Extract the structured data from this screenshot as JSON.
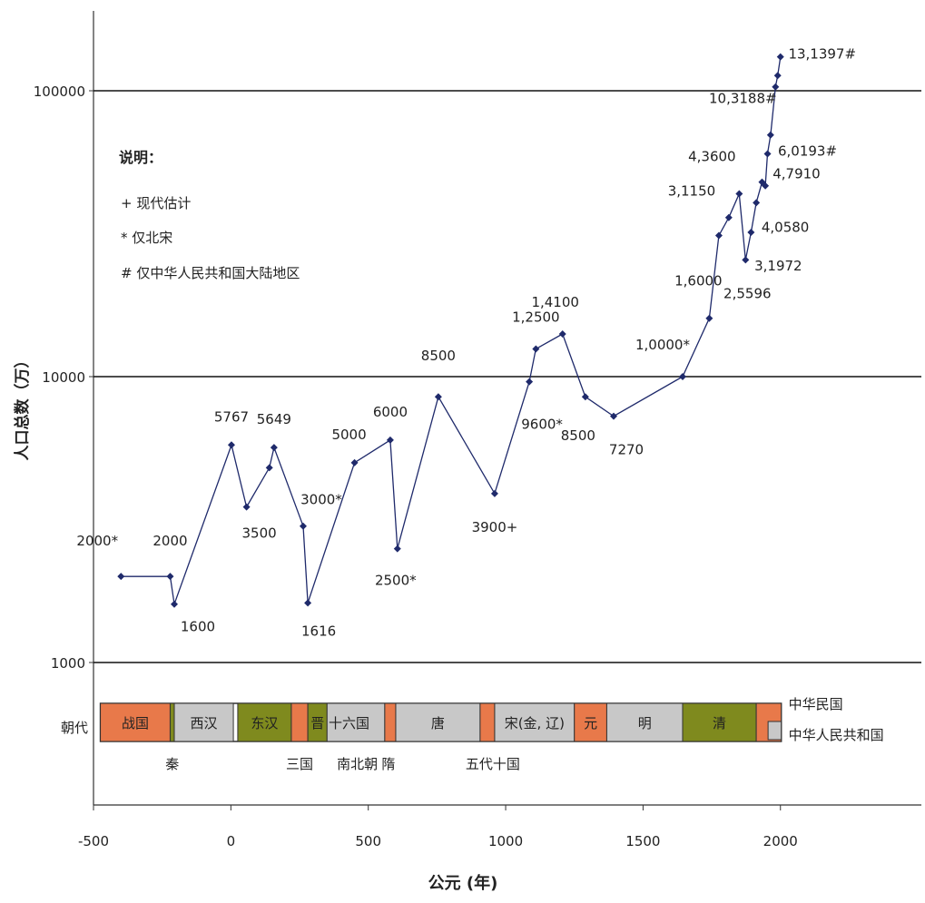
{
  "chart_data": {
    "type": "line",
    "title": "",
    "xlabel": "公元 (年)",
    "ylabel": "人口总数（万）",
    "y_scale": "log",
    "xlim": [
      -500,
      2500
    ],
    "ylim": [
      1000,
      160000
    ],
    "x_ticks": [
      "-500",
      "0",
      "500",
      "1000",
      "1500",
      "2000"
    ],
    "y_ticks": [
      "1000",
      "10000",
      "100000"
    ],
    "grid": "horizontal lines at 1000, 10000, 100000",
    "legend": {
      "title": "说明：",
      "items": [
        "+ 现代估计",
        "* 仅北宋",
        "# 仅中华人民共和国大陆地区"
      ]
    },
    "series": [
      {
        "color": "#1f2a6b",
        "points": [
          {
            "x": -400,
            "y": 2000
          },
          {
            "x": -221,
            "y": 2000
          },
          {
            "x": -206,
            "y": 1600
          },
          {
            "x": 2,
            "y": 5767
          },
          {
            "x": 57,
            "y": 3500
          },
          {
            "x": 140,
            "y": 4800
          },
          {
            "x": 157,
            "y": 5649
          },
          {
            "x": 263,
            "y": 3000
          },
          {
            "x": 280,
            "y": 1616
          },
          {
            "x": 450,
            "y": 5000
          },
          {
            "x": 580,
            "y": 6000
          },
          {
            "x": 606,
            "y": 2500
          },
          {
            "x": 755,
            "y": 8500
          },
          {
            "x": 960,
            "y": 3900
          },
          {
            "x": 1086,
            "y": 9600
          },
          {
            "x": 1110,
            "y": 12500
          },
          {
            "x": 1207,
            "y": 14100
          },
          {
            "x": 1290,
            "y": 8500
          },
          {
            "x": 1393,
            "y": 7270
          },
          {
            "x": 1644,
            "y": 10000
          },
          {
            "x": 1741,
            "y": 16000
          },
          {
            "x": 1776,
            "y": 31150
          },
          {
            "x": 1812,
            "y": 36000
          },
          {
            "x": 1850,
            "y": 43600
          },
          {
            "x": 1873,
            "y": 25596
          },
          {
            "x": 1893,
            "y": 31972
          },
          {
            "x": 1912,
            "y": 40580
          },
          {
            "x": 1933,
            "y": 47910
          },
          {
            "x": 1945,
            "y": 46500
          },
          {
            "x": 1953,
            "y": 60193
          },
          {
            "x": 1964,
            "y": 70000
          },
          {
            "x": 1982,
            "y": 103188
          },
          {
            "x": 1990,
            "y": 113000
          },
          {
            "x": 2000,
            "y": 131397
          }
        ]
      }
    ],
    "data_labels": [
      {
        "text": "2000*",
        "x": -400,
        "y": 2000
      },
      {
        "text": "2000",
        "x": -221,
        "y": 2000
      },
      {
        "text": "1600",
        "x": -206,
        "y": 1600
      },
      {
        "text": "5767",
        "x": 2,
        "y": 5767
      },
      {
        "text": "3500",
        "x": 57,
        "y": 3500
      },
      {
        "text": "5649",
        "x": 157,
        "y": 5649
      },
      {
        "text": "3000*",
        "x": 263,
        "y": 3000
      },
      {
        "text": "1616",
        "x": 280,
        "y": 1616
      },
      {
        "text": "5000",
        "x": 450,
        "y": 5000
      },
      {
        "text": "6000",
        "x": 580,
        "y": 6000
      },
      {
        "text": "2500*",
        "x": 606,
        "y": 2500
      },
      {
        "text": "8500",
        "x": 755,
        "y": 8500
      },
      {
        "text": "3900+",
        "x": 960,
        "y": 3900
      },
      {
        "text": "9600*",
        "x": 1086,
        "y": 9600
      },
      {
        "text": "1,2500",
        "x": 1110,
        "y": 12500
      },
      {
        "text": "1,4100",
        "x": 1207,
        "y": 14100
      },
      {
        "text": "8500",
        "x": 1290,
        "y": 8500
      },
      {
        "text": "7270",
        "x": 1393,
        "y": 7270
      },
      {
        "text": "1,0000*",
        "x": 1644,
        "y": 10000
      },
      {
        "text": "1,6000",
        "x": 1741,
        "y": 16000
      },
      {
        "text": "3,1150",
        "x": 1776,
        "y": 31150
      },
      {
        "text": "4,3600",
        "x": 1850,
        "y": 43600
      },
      {
        "text": "2,5596",
        "x": 1873,
        "y": 25596
      },
      {
        "text": "3,1972",
        "x": 1893,
        "y": 31972
      },
      {
        "text": "4,0580",
        "x": 1912,
        "y": 40580
      },
      {
        "text": "4,7910",
        "x": 1933,
        "y": 47910
      },
      {
        "text": "6,0193#",
        "x": 1953,
        "y": 60193
      },
      {
        "text": "10,3188#",
        "x": 1982,
        "y": 103188
      },
      {
        "text": "13,1397#",
        "x": 2000,
        "y": 131397
      }
    ],
    "dynasty_bar": {
      "label": "朝代",
      "segments": [
        {
          "name": "战国",
          "start": -475,
          "end": -221,
          "color": "#e8794a"
        },
        {
          "name": "秦",
          "start": -221,
          "end": -206,
          "color": "#7f8a1e"
        },
        {
          "name": "西汉",
          "start": -206,
          "end": 9,
          "color": "#c8c8c8"
        },
        {
          "name": "东汉",
          "start": 25,
          "end": 220,
          "color": "#7f8a1e"
        },
        {
          "name": "三国",
          "start": 220,
          "end": 280,
          "color": "#e8794a"
        },
        {
          "name": "晋",
          "start": 280,
          "end": 350,
          "color": "#7f8a1e"
        },
        {
          "name": "十六国",
          "start": 350,
          "end": 560,
          "color": "#c8c8c8"
        },
        {
          "name": "南北朝",
          "start": 420,
          "end": 589,
          "color": "#c8c8c8"
        },
        {
          "name": "隋",
          "start": 560,
          "end": 600,
          "color": "#e8794a"
        },
        {
          "name": "唐",
          "start": 600,
          "end": 907,
          "color": "#c8c8c8"
        },
        {
          "name": "五代十国",
          "start": 907,
          "end": 960,
          "color": "#e8794a"
        },
        {
          "name": "宋(金, 辽)",
          "start": 960,
          "end": 1250,
          "color": "#c8c8c8"
        },
        {
          "name": "元",
          "start": 1250,
          "end": 1368,
          "color": "#e8794a"
        },
        {
          "name": "明",
          "start": 1368,
          "end": 1644,
          "color": "#c8c8c8"
        },
        {
          "name": "清",
          "start": 1644,
          "end": 1912,
          "color": "#7f8a1e"
        },
        {
          "name": "中华民国",
          "start": 1912,
          "end": 2003,
          "color": "#e8794a"
        },
        {
          "name": "中华人民共和国",
          "start": 1949,
          "end": 2003,
          "color": "#c8c8c8"
        }
      ]
    }
  }
}
